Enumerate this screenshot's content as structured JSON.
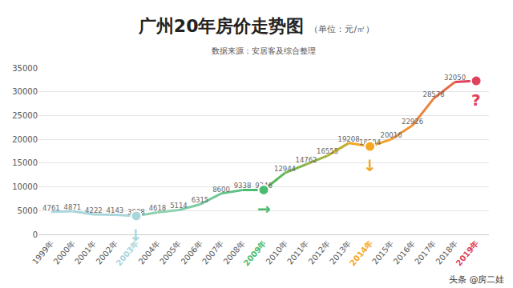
{
  "chart_data": {
    "type": "line",
    "title": "广州20年房价走势图",
    "subtitle": "（单位：元/㎡）",
    "source": "数据来源：安居客及综合整理",
    "credit": "头条 @房二娃",
    "categories": [
      "1999年",
      "2000年",
      "2001年",
      "2002年",
      "2003年",
      "2004年",
      "2005年",
      "2006年",
      "2007年",
      "2008年",
      "2009年",
      "2010年",
      "2011年",
      "2012年",
      "2013年",
      "2014年",
      "2015年",
      "2016年",
      "2017年",
      "2018年",
      "2019年"
    ],
    "values": [
      4761,
      4871,
      4222,
      4143,
      3888,
      4618,
      5114,
      6315,
      8600,
      9338,
      9346,
      12944,
      14762,
      16555,
      19208,
      18504,
      20016,
      22926,
      28578,
      32050,
      32300
    ],
    "value_labels": [
      "4761",
      "4871",
      "4222",
      "4143",
      "3888",
      "4618",
      "5114",
      "6315",
      "8600",
      "9338",
      "9346",
      "12944",
      "14762",
      "16555",
      "19208",
      "18504",
      "20016",
      "22926",
      "28578",
      "32050",
      null
    ],
    "colors": [
      "#a9d6dc",
      "#a9d6dc",
      "#a9d6dc",
      "#a9d6dc",
      "#a9d6dc",
      "#8fd0b0",
      "#8fd0b0",
      "#7ccca2",
      "#6fc796",
      "#5fc185",
      "#4cbb72",
      "#5cb85c",
      "#7ab648",
      "#9ab53c",
      "#c2b02e",
      "#f5a623",
      "#f2a02c",
      "#ee9435",
      "#ea843c",
      "#e66a47",
      "#e0405a"
    ],
    "annotations": [
      {
        "x": "2003年",
        "text": "↓"
      },
      {
        "x": "2009年",
        "text": "→"
      },
      {
        "x": "2014年",
        "text": "↓"
      },
      {
        "x": "2019年",
        "text": "?"
      }
    ],
    "ylim": [
      0,
      35000
    ],
    "yticks": [
      0,
      5000,
      10000,
      15000,
      20000,
      25000,
      30000,
      35000
    ],
    "grid": true,
    "data_labels": true
  }
}
